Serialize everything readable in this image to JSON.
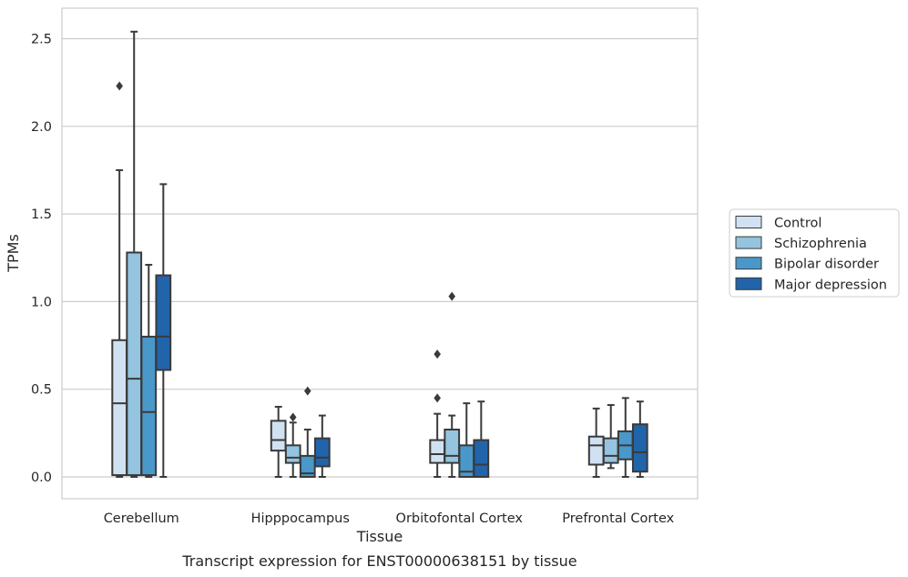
{
  "chart_data": {
    "type": "box",
    "xlabel": "Tissue",
    "ylabel": "TPMs",
    "caption": "Transcript expression for ENST00000638151 by tissue",
    "ylim": [
      -0.12,
      2.67
    ],
    "yticks": [
      0.0,
      0.5,
      1.0,
      1.5,
      2.0,
      2.5
    ],
    "ytick_labels": [
      "0.0",
      "0.5",
      "1.0",
      "1.5",
      "2.0",
      "2.5"
    ],
    "grid": "horizontal",
    "legend_position": "right",
    "categories": [
      "Cerebellum",
      "Hipppocampus",
      "Orbitofontal Cortex",
      "Prefrontal Cortex"
    ],
    "series": [
      {
        "name": "Control",
        "color": "#d0e1f2",
        "boxes": [
          {
            "whisker_low": 0.0,
            "q1": 0.01,
            "median": 0.42,
            "q3": 0.78,
            "whisker_high": 1.75,
            "outliers": [
              2.23
            ]
          },
          {
            "whisker_low": 0.0,
            "q1": 0.15,
            "median": 0.21,
            "q3": 0.32,
            "whisker_high": 0.4,
            "outliers": []
          },
          {
            "whisker_low": 0.0,
            "q1": 0.08,
            "median": 0.13,
            "q3": 0.21,
            "whisker_high": 0.36,
            "outliers": [
              0.45,
              0.7
            ]
          },
          {
            "whisker_low": 0.0,
            "q1": 0.07,
            "median": 0.18,
            "q3": 0.23,
            "whisker_high": 0.39,
            "outliers": []
          }
        ]
      },
      {
        "name": "Schizophrenia",
        "color": "#94c4df",
        "boxes": [
          {
            "whisker_low": 0.0,
            "q1": 0.01,
            "median": 0.56,
            "q3": 1.28,
            "whisker_high": 2.54,
            "outliers": []
          },
          {
            "whisker_low": 0.0,
            "q1": 0.08,
            "median": 0.11,
            "q3": 0.18,
            "whisker_high": 0.31,
            "outliers": [
              0.34
            ]
          },
          {
            "whisker_low": 0.0,
            "q1": 0.08,
            "median": 0.12,
            "q3": 0.27,
            "whisker_high": 0.35,
            "outliers": [
              1.03
            ]
          },
          {
            "whisker_low": 0.05,
            "q1": 0.08,
            "median": 0.12,
            "q3": 0.22,
            "whisker_high": 0.41,
            "outliers": []
          }
        ]
      },
      {
        "name": "Bipolar disorder",
        "color": "#4a98c9",
        "boxes": [
          {
            "whisker_low": 0.0,
            "q1": 0.01,
            "median": 0.37,
            "q3": 0.8,
            "whisker_high": 1.21,
            "outliers": []
          },
          {
            "whisker_low": 0.0,
            "q1": 0.0,
            "median": 0.02,
            "q3": 0.12,
            "whisker_high": 0.27,
            "outliers": [
              0.49
            ]
          },
          {
            "whisker_low": 0.0,
            "q1": 0.0,
            "median": 0.03,
            "q3": 0.18,
            "whisker_high": 0.42,
            "outliers": []
          },
          {
            "whisker_low": 0.0,
            "q1": 0.1,
            "median": 0.18,
            "q3": 0.26,
            "whisker_high": 0.45,
            "outliers": []
          }
        ]
      },
      {
        "name": "Major depression",
        "color": "#2264a9",
        "boxes": [
          {
            "whisker_low": 0.0,
            "q1": 0.61,
            "median": 0.8,
            "q3": 1.15,
            "whisker_high": 1.67,
            "outliers": []
          },
          {
            "whisker_low": 0.0,
            "q1": 0.06,
            "median": 0.11,
            "q3": 0.22,
            "whisker_high": 0.35,
            "outliers": []
          },
          {
            "whisker_low": 0.0,
            "q1": 0.0,
            "median": 0.07,
            "q3": 0.21,
            "whisker_high": 0.43,
            "outliers": []
          },
          {
            "whisker_low": 0.0,
            "q1": 0.03,
            "median": 0.14,
            "q3": 0.3,
            "whisker_high": 0.43,
            "outliers": []
          }
        ]
      }
    ],
    "colors": {
      "grid": "#cccccc",
      "frame": "#cccccc",
      "stroke": "#3a3a3a",
      "text": "#262626"
    }
  }
}
